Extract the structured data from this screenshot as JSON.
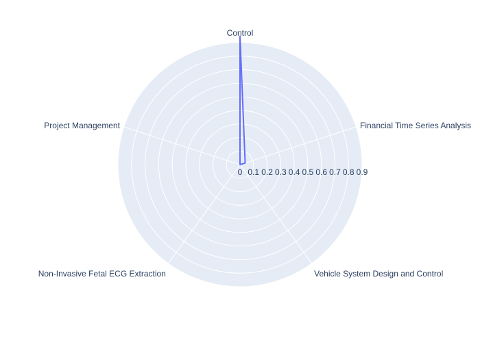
{
  "chart_data": {
    "type": "radar",
    "categories": [
      "Control",
      "Financial Time Series Analysis",
      "Vehicle System Design and Control",
      "Non-Invasive Fetal ECG Extraction",
      "Project Management"
    ],
    "series": [
      {
        "values": [
          0.95,
          0.04,
          0.0,
          0.0,
          0.0
        ],
        "closed": true
      }
    ],
    "radial_range": [
      0,
      0.9
    ],
    "radial_ticks": [
      "0",
      "0.1",
      "0.2",
      "0.3",
      "0.4",
      "0.5",
      "0.6",
      "0.7",
      "0.8",
      "0.9"
    ],
    "grid": true,
    "colors": {
      "series": "#636efa",
      "polar_bg": "#e5ecf6",
      "grid": "#ffffff",
      "text": "#2a3f5f"
    }
  }
}
